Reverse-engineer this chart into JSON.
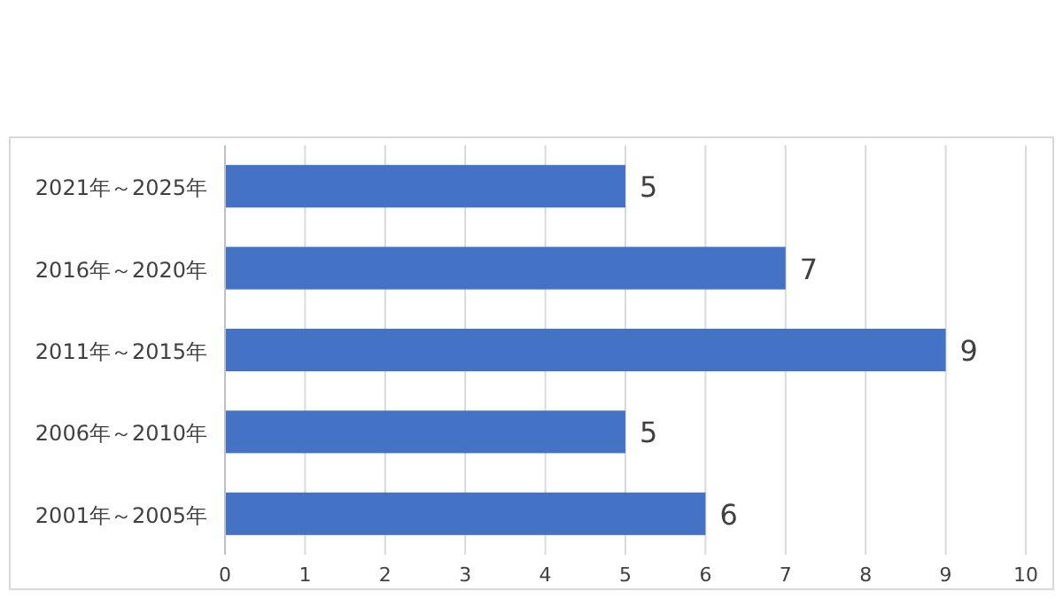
{
  "chart_data": {
    "type": "bar",
    "orientation": "horizontal",
    "categories": [
      "2021年～2025年",
      "2016年～2020年",
      "2011年～2015年",
      "2006年～2010年",
      "2001年～2005年"
    ],
    "values": [
      5,
      7,
      9,
      5,
      6
    ],
    "color": "#4472c4",
    "xlim": [
      0,
      10
    ],
    "xticks": [
      0,
      1,
      2,
      3,
      4,
      5,
      6,
      7,
      8,
      9,
      10
    ],
    "grid": "x",
    "data_labels": true
  }
}
